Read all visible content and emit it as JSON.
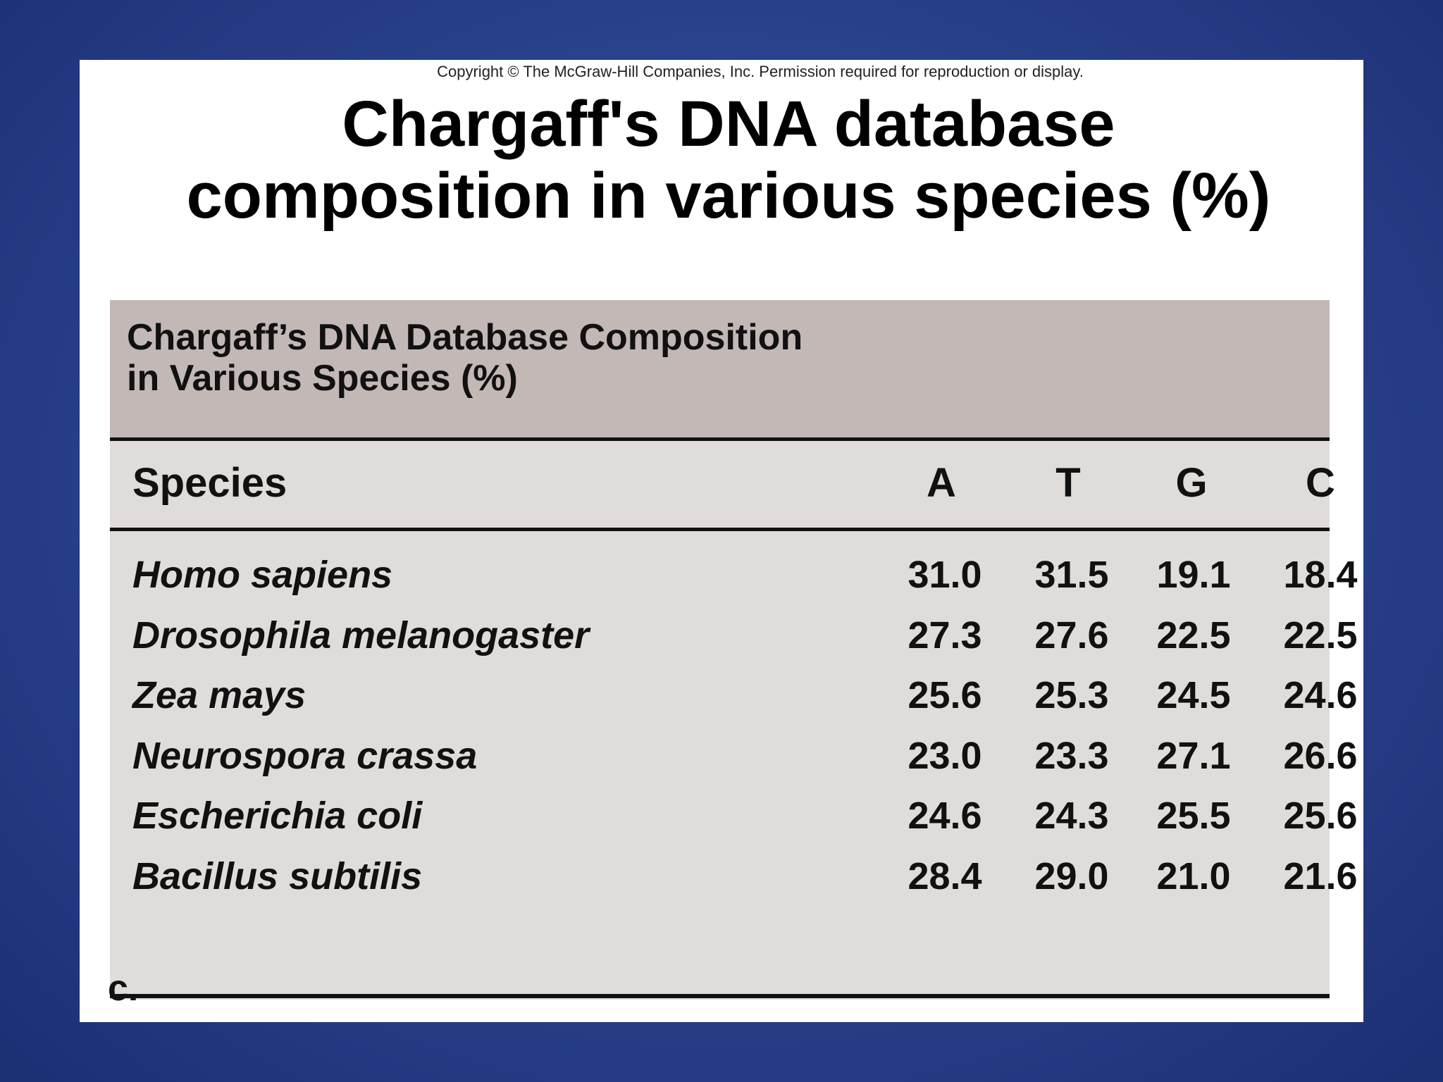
{
  "copyright": "Copyright © The McGraw-Hill Companies, Inc. Permission required for reproduction or display.",
  "title_line1": "Chargaff's DNA database",
  "title_line2": "composition in various species (%)",
  "table": {
    "caption_line1": "Chargaff’s DNA Database Composition",
    "caption_line2": "in Various Species (%)",
    "headers": [
      "Species",
      "A",
      "T",
      "G",
      "C"
    ],
    "rows": [
      {
        "species": "Homo sapiens",
        "A": "31.0",
        "T": "31.5",
        "G": "19.1",
        "C": "18.4"
      },
      {
        "species": "Drosophila melanogaster",
        "A": "27.3",
        "T": "27.6",
        "G": "22.5",
        "C": "22.5"
      },
      {
        "species": "Zea mays",
        "A": "25.6",
        "T": "25.3",
        "G": "24.5",
        "C": "24.6"
      },
      {
        "species": "Neurospora crassa",
        "A": "23.0",
        "T": "23.3",
        "G": "27.1",
        "C": "26.6"
      },
      {
        "species": "Escherichia coli",
        "A": "24.6",
        "T": "24.3",
        "G": "25.5",
        "C": "25.6"
      },
      {
        "species": "Bacillus subtilis",
        "A": "28.4",
        "T": "29.0",
        "G": "21.0",
        "C": "21.6"
      }
    ]
  },
  "footnote": "c."
}
